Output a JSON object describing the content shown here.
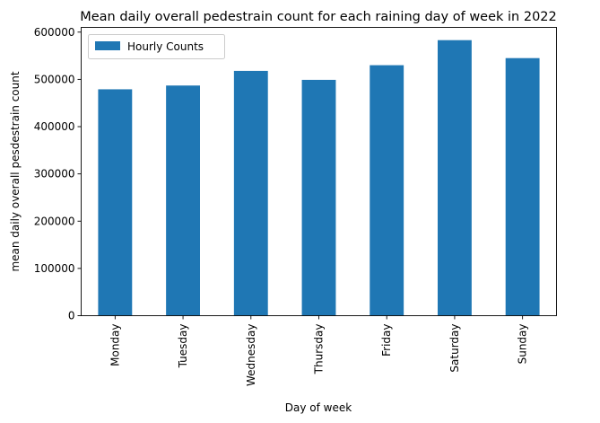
{
  "chart_data": {
    "type": "bar",
    "title": "Mean daily overall pedestrain count for each raining day of week in 2022",
    "xlabel": "Day of week",
    "ylabel": "mean daily overall pesdestrain count",
    "categories": [
      "Monday",
      "Tuesday",
      "Wednesday",
      "Thursday",
      "Friday",
      "Saturday",
      "Sunday"
    ],
    "series": [
      {
        "name": "Hourly Counts",
        "values": [
          479000,
          487000,
          518000,
          499000,
          530000,
          583000,
          545000
        ],
        "color": "#1f77b4"
      }
    ],
    "ylim": [
      0,
      610000
    ],
    "yticks": [
      0,
      100000,
      200000,
      300000,
      400000,
      500000,
      600000
    ],
    "ytick_labels": [
      "0",
      "100000",
      "200000",
      "300000",
      "400000",
      "500000",
      "600000"
    ],
    "grid": false,
    "legend_position": "top-left",
    "xtick_rotation": "vertical"
  }
}
